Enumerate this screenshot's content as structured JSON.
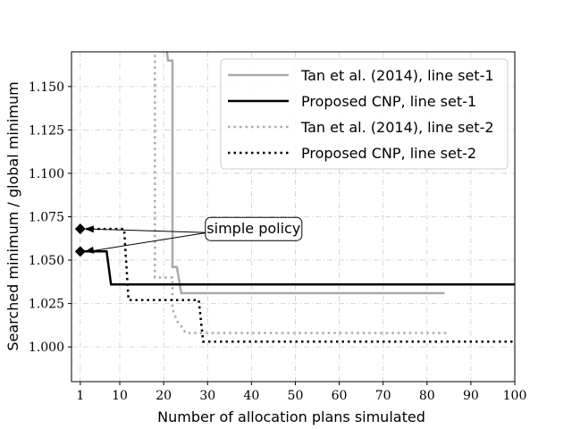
{
  "chart_data": {
    "type": "line",
    "title": "",
    "xlabel": "Number of allocation plans simulated",
    "ylabel": "Searched minimum / global minimum",
    "xlim": [
      -1,
      100
    ],
    "ylim": [
      0.98,
      1.17
    ],
    "xticks": [
      1,
      10,
      20,
      30,
      40,
      50,
      60,
      70,
      80,
      90,
      100
    ],
    "yticks": [
      1.0,
      1.025,
      1.05,
      1.075,
      1.1,
      1.125,
      1.15
    ],
    "ytick_labels": [
      "1.000",
      "1.025",
      "1.050",
      "1.075",
      "1.100",
      "1.125",
      "1.150"
    ],
    "grid": true,
    "legend_position": "top-right",
    "series": [
      {
        "name": "Tan et al. (2014), line set-1",
        "color": "#aaaaaa",
        "style": "solid",
        "x": [
          20,
          21,
          22,
          22,
          23,
          23,
          24,
          84
        ],
        "y": [
          1.185,
          1.165,
          1.165,
          1.046,
          1.046,
          1.046,
          1.031,
          1.031
        ]
      },
      {
        "name": "Proposed CNP, line set-1",
        "color": "#000000",
        "style": "solid",
        "x": [
          1,
          7,
          8,
          100
        ],
        "y": [
          1.055,
          1.055,
          1.036,
          1.036
        ]
      },
      {
        "name": "Tan et al. (2014), line set-2",
        "color": "#aaaaaa",
        "style": "dotted",
        "x": [
          18,
          18,
          21,
          21,
          22,
          22,
          23,
          24,
          25,
          85
        ],
        "y": [
          1.185,
          1.04,
          1.04,
          1.04,
          1.04,
          1.022,
          1.015,
          1.012,
          1.008,
          1.008
        ]
      },
      {
        "name": "Proposed CNP, line set-2",
        "color": "#000000",
        "style": "dotted",
        "x": [
          1,
          10,
          11,
          12,
          28,
          29,
          100
        ],
        "y": [
          1.068,
          1.068,
          1.068,
          1.027,
          1.027,
          1.003,
          1.003
        ]
      }
    ],
    "markers": [
      {
        "x": 1,
        "y": 1.068,
        "shape": "diamond"
      },
      {
        "x": 1,
        "y": 1.055,
        "shape": "diamond"
      }
    ],
    "annotation": {
      "text": "simple policy",
      "anchor_x": 40.5,
      "anchor_y": 1.07,
      "targets": [
        {
          "x": 1,
          "y": 1.068
        },
        {
          "x": 1,
          "y": 1.055
        }
      ]
    }
  }
}
